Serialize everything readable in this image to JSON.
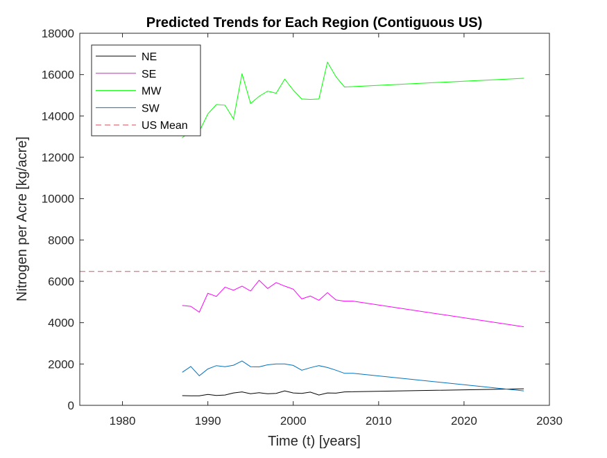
{
  "chart_data": {
    "type": "line",
    "title": "Predicted Trends for Each Region (Contiguous US)",
    "xlabel": "Time (t) [years]",
    "ylabel": "Nitrogen per Acre [kg/acre]",
    "xlim": [
      1975,
      2030
    ],
    "ylim": [
      0,
      18000
    ],
    "xticks": [
      1980,
      1990,
      2000,
      2010,
      2020,
      2030
    ],
    "yticks": [
      0,
      2000,
      4000,
      6000,
      8000,
      10000,
      12000,
      14000,
      16000,
      18000
    ],
    "grid": false,
    "legend_position": "top-left",
    "series": [
      {
        "name": "NE",
        "color": "#000000",
        "dash": "solid",
        "x": [
          1987,
          1988,
          1989,
          1990,
          1991,
          1992,
          1993,
          1994,
          1995,
          1996,
          1997,
          1998,
          1999,
          2000,
          2001,
          2002,
          2003,
          2004,
          2005,
          2006,
          2027
        ],
        "y": [
          470,
          460,
          460,
          530,
          480,
          500,
          600,
          650,
          560,
          610,
          560,
          580,
          700,
          600,
          580,
          640,
          500,
          600,
          590,
          650,
          800
        ]
      },
      {
        "name": "SE",
        "color": "#ff00ff",
        "dash": "solid",
        "x": [
          1987,
          1988,
          1989,
          1990,
          1991,
          1992,
          1993,
          1994,
          1995,
          1996,
          1997,
          1998,
          1999,
          2000,
          2001,
          2002,
          2003,
          2004,
          2005,
          2006,
          2007,
          2027
        ],
        "y": [
          4830,
          4790,
          4510,
          5420,
          5270,
          5720,
          5570,
          5770,
          5530,
          6050,
          5650,
          5940,
          5770,
          5620,
          5150,
          5290,
          5080,
          5450,
          5100,
          5040,
          5040,
          3800
        ]
      },
      {
        "name": "MW",
        "color": "#00ff00",
        "dash": "solid",
        "x": [
          1987,
          1988,
          1989,
          1990,
          1991,
          1992,
          1993,
          1994,
          1995,
          1996,
          1997,
          1998,
          1999,
          2000,
          2001,
          2002,
          2003,
          2004,
          2005,
          2006,
          2027
        ],
        "y": [
          12950,
          13250,
          13250,
          14100,
          14550,
          14520,
          13850,
          16050,
          14600,
          14950,
          15200,
          15100,
          15780,
          15250,
          14820,
          14800,
          14820,
          16600,
          15900,
          15400,
          15820
        ]
      },
      {
        "name": "SW",
        "color": "#0072bd",
        "dash": "solid",
        "x": [
          1987,
          1988,
          1989,
          1990,
          1991,
          1992,
          1993,
          1994,
          1995,
          1996,
          1997,
          1998,
          1999,
          2000,
          2001,
          2002,
          2003,
          2004,
          2005,
          2006,
          2007,
          2027
        ],
        "y": [
          1600,
          1880,
          1430,
          1760,
          1920,
          1870,
          1940,
          2150,
          1870,
          1860,
          1960,
          2000,
          2000,
          1930,
          1700,
          1820,
          1920,
          1830,
          1700,
          1550,
          1550,
          700
        ]
      },
      {
        "name": "US Mean",
        "color": "#d95361",
        "dash": "dashed",
        "x": [
          1975,
          2030
        ],
        "y": [
          6480,
          6480
        ]
      }
    ]
  }
}
